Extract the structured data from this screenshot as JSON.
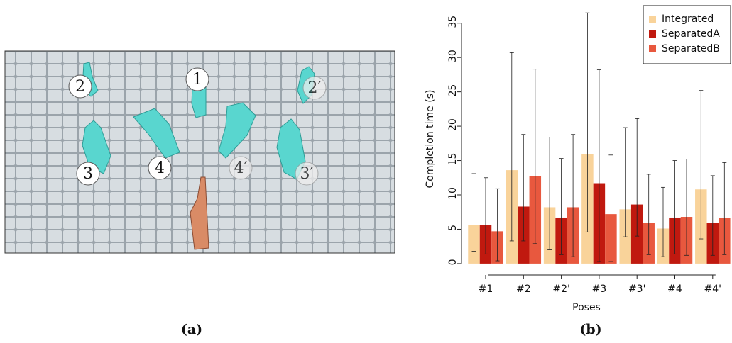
{
  "image_panel": {
    "labels": [
      "1",
      "2",
      "2′",
      "3",
      "3′",
      "4",
      "4′"
    ],
    "caption": "(a)"
  },
  "chart_data": {
    "type": "bar",
    "caption": "(b)",
    "xlabel": "Poses",
    "ylabel": "Completion time (s)",
    "categories": [
      "#1",
      "#2",
      "#2'",
      "#3",
      "#3'",
      "#4",
      "#4'"
    ],
    "ylim": [
      -1.35,
      37.55
    ],
    "yticks": [
      0,
      5,
      10,
      15,
      20,
      25,
      30,
      35
    ],
    "grid": false,
    "legend": "top-right",
    "series": [
      {
        "name": "Integrated",
        "color": "#f9d39a",
        "values": [
          5.6,
          13.6,
          8.2,
          15.9,
          7.9,
          5.1,
          10.8
        ],
        "low": [
          1.8,
          3.3,
          2.0,
          4.6,
          3.9,
          1.0,
          3.6
        ],
        "high": [
          13.1,
          30.7,
          18.4,
          36.5,
          19.8,
          11.1,
          25.2
        ]
      },
      {
        "name": "SeparatedA",
        "color": "#c0190f",
        "values": [
          5.6,
          8.3,
          6.7,
          11.7,
          8.6,
          6.7,
          5.9
        ],
        "low": [
          1.4,
          3.3,
          1.3,
          0.3,
          4.0,
          1.4,
          1.2
        ],
        "high": [
          12.5,
          18.8,
          15.3,
          28.2,
          21.1,
          15.0,
          12.8
        ]
      },
      {
        "name": "SeparatedB",
        "color": "#e8583e",
        "values": [
          4.7,
          12.7,
          8.2,
          7.2,
          5.9,
          6.8,
          6.6
        ],
        "low": [
          0.4,
          2.9,
          1.0,
          0.3,
          1.3,
          1.2,
          1.3
        ],
        "high": [
          10.9,
          28.3,
          18.8,
          15.8,
          13.0,
          15.2,
          14.7
        ]
      }
    ]
  }
}
